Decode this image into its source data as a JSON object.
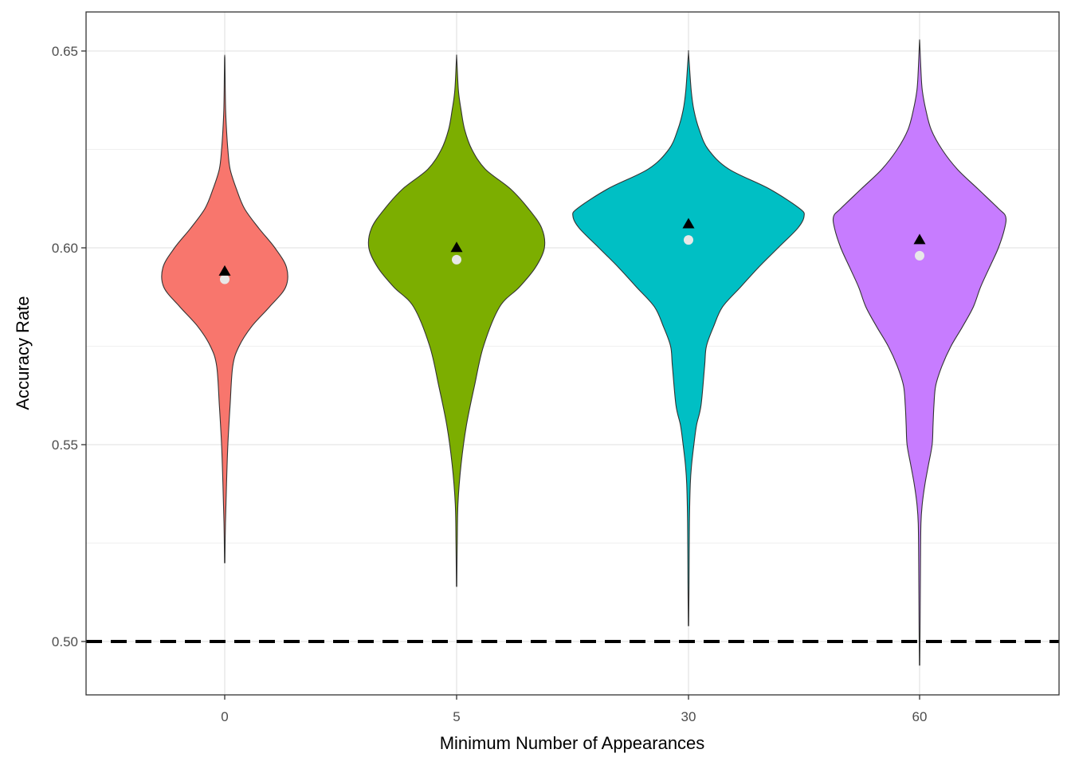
{
  "chart_data": {
    "type": "violin",
    "title": "",
    "xlabel": "Minimum Number of Appearances",
    "ylabel": "Accuracy Rate",
    "categories": [
      "0",
      "5",
      "30",
      "60"
    ],
    "ylim": [
      0.487,
      0.66
    ],
    "yticks": [
      0.5,
      0.55,
      0.6,
      0.65
    ],
    "ytick_labels": [
      "0.50",
      "0.55",
      "0.60",
      "0.65"
    ],
    "grid": true,
    "reference_line": {
      "y": 0.5,
      "style": "dashed",
      "color": "#000000"
    },
    "series": [
      {
        "category": "0",
        "color": "#F8766D",
        "mean": 0.594,
        "median": 0.592,
        "min": 0.52,
        "max": 0.648,
        "density_profile": [
          [
            0.52,
            0.2
          ],
          [
            0.53,
            0.8
          ],
          [
            0.54,
            2
          ],
          [
            0.55,
            3.5
          ],
          [
            0.56,
            6
          ],
          [
            0.57,
            9
          ],
          [
            0.575,
            16
          ],
          [
            0.58,
            30
          ],
          [
            0.585,
            50
          ],
          [
            0.59,
            68
          ],
          [
            0.595,
            69
          ],
          [
            0.6,
            56
          ],
          [
            0.605,
            38
          ],
          [
            0.61,
            22
          ],
          [
            0.615,
            13
          ],
          [
            0.62,
            6
          ],
          [
            0.625,
            3.5
          ],
          [
            0.63,
            2
          ],
          [
            0.635,
            1
          ],
          [
            0.64,
            0.6
          ],
          [
            0.648,
            0.2
          ]
        ]
      },
      {
        "category": "5",
        "color": "#7CAE00",
        "mean": 0.6,
        "median": 0.597,
        "min": 0.514,
        "max": 0.648,
        "density_profile": [
          [
            0.514,
            0.2
          ],
          [
            0.525,
            0.7
          ],
          [
            0.535,
            1.5
          ],
          [
            0.545,
            5
          ],
          [
            0.555,
            11
          ],
          [
            0.565,
            20
          ],
          [
            0.575,
            30
          ],
          [
            0.585,
            48
          ],
          [
            0.59,
            70
          ],
          [
            0.595,
            88
          ],
          [
            0.6,
            98
          ],
          [
            0.605,
            95
          ],
          [
            0.61,
            80
          ],
          [
            0.615,
            60
          ],
          [
            0.62,
            32
          ],
          [
            0.625,
            17
          ],
          [
            0.63,
            9
          ],
          [
            0.635,
            5
          ],
          [
            0.64,
            2
          ],
          [
            0.648,
            0.2
          ]
        ]
      },
      {
        "category": "30",
        "color": "#00BFC4",
        "mean": 0.606,
        "median": 0.602,
        "min": 0.504,
        "max": 0.649,
        "density_profile": [
          [
            0.504,
            0.2
          ],
          [
            0.515,
            0.6
          ],
          [
            0.53,
            1
          ],
          [
            0.54,
            2
          ],
          [
            0.545,
            3.5
          ],
          [
            0.55,
            6
          ],
          [
            0.555,
            9
          ],
          [
            0.56,
            14
          ],
          [
            0.57,
            18
          ],
          [
            0.575,
            20
          ],
          [
            0.58,
            28
          ],
          [
            0.585,
            38
          ],
          [
            0.59,
            58
          ],
          [
            0.595,
            78
          ],
          [
            0.6,
            100
          ],
          [
            0.605,
            122
          ],
          [
            0.608,
            129
          ],
          [
            0.61,
            124
          ],
          [
            0.615,
            90
          ],
          [
            0.62,
            45
          ],
          [
            0.625,
            22
          ],
          [
            0.63,
            12
          ],
          [
            0.635,
            6
          ],
          [
            0.64,
            3
          ],
          [
            0.649,
            0.2
          ]
        ]
      },
      {
        "category": "60",
        "color": "#C77CFF",
        "mean": 0.602,
        "median": 0.598,
        "min": 0.494,
        "max": 0.652,
        "density_profile": [
          [
            0.494,
            0.2
          ],
          [
            0.505,
            0.6
          ],
          [
            0.52,
            1
          ],
          [
            0.53,
            1.5
          ],
          [
            0.535,
            3
          ],
          [
            0.54,
            6
          ],
          [
            0.545,
            10
          ],
          [
            0.55,
            14
          ],
          [
            0.555,
            15
          ],
          [
            0.56,
            16
          ],
          [
            0.565,
            18
          ],
          [
            0.57,
            25
          ],
          [
            0.575,
            35
          ],
          [
            0.58,
            48
          ],
          [
            0.585,
            60
          ],
          [
            0.59,
            68
          ],
          [
            0.595,
            78
          ],
          [
            0.6,
            88
          ],
          [
            0.605,
            95
          ],
          [
            0.608,
            96
          ],
          [
            0.61,
            88
          ],
          [
            0.615,
            65
          ],
          [
            0.62,
            42
          ],
          [
            0.625,
            25
          ],
          [
            0.63,
            13
          ],
          [
            0.635,
            7
          ],
          [
            0.64,
            3
          ],
          [
            0.645,
            1.5
          ],
          [
            0.652,
            0.2
          ]
        ]
      }
    ]
  }
}
